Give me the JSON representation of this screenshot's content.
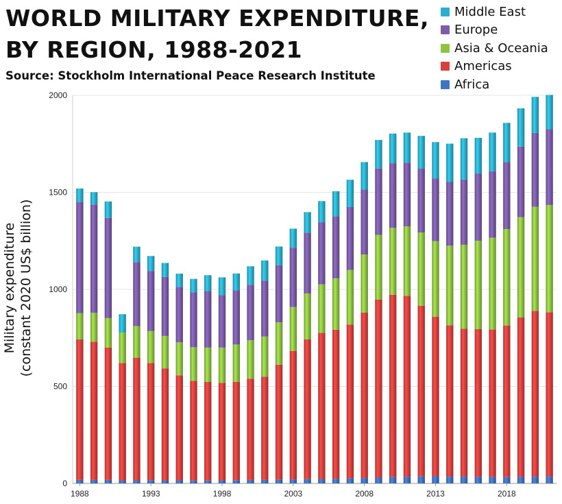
{
  "chart_data": {
    "type": "bar",
    "stacked": true,
    "title_lines": [
      "WORLD MILITARY EXPENDITURE,",
      "BY REGION, 1988-2021"
    ],
    "subtitle": "Source: Stockholm International Peace Research Institute",
    "ylabel_lines": [
      "Military expenditure",
      "(constant 2020 US$ billion)"
    ],
    "xlabel": "",
    "ylim": [
      0,
      2000
    ],
    "yticks": [
      0,
      500,
      1000,
      1500,
      2000
    ],
    "xtick_labels": [
      "1988",
      "1993",
      "1998",
      "2003",
      "2008",
      "2013",
      "2018"
    ],
    "grid": true,
    "legend_position": "top-right",
    "categories": [
      "1988",
      "1989",
      "1990",
      "1991",
      "1992",
      "1993",
      "1994",
      "1995",
      "1996",
      "1997",
      "1998",
      "1999",
      "2000",
      "2001",
      "2002",
      "2003",
      "2004",
      "2005",
      "2006",
      "2007",
      "2008",
      "2009",
      "2010",
      "2011",
      "2012",
      "2013",
      "2014",
      "2015",
      "2016",
      "2017",
      "2018",
      "2019",
      "2020",
      "2021"
    ],
    "series": [
      {
        "name": "Africa",
        "color": "#3f73c4",
        "values": [
          18,
          18,
          18,
          16,
          16,
          17,
          16,
          16,
          15,
          15,
          16,
          17,
          18,
          18,
          20,
          20,
          22,
          23,
          24,
          26,
          28,
          30,
          33,
          35,
          36,
          37,
          35,
          35,
          34,
          34,
          33,
          34,
          35,
          35
        ]
      },
      {
        "name": "Americas",
        "color": "#d9403d",
        "values": [
          724,
          712,
          682,
          604,
          632,
          603,
          577,
          541,
          514,
          508,
          502,
          507,
          522,
          532,
          592,
          663,
          720,
          753,
          768,
          793,
          852,
          917,
          939,
          932,
          880,
          822,
          780,
          762,
          761,
          759,
          781,
          821,
          854,
          847
        ]
      },
      {
        "name": "Asia & Oceania",
        "color": "#8fc441",
        "values": [
          136,
          149,
          152,
          157,
          163,
          165,
          167,
          170,
          173,
          177,
          182,
          192,
          198,
          207,
          218,
          226,
          237,
          250,
          265,
          281,
          300,
          334,
          345,
          358,
          377,
          390,
          410,
          433,
          456,
          473,
          497,
          517,
          537,
          553
        ]
      },
      {
        "name": "Europe",
        "color": "#7b5ca8",
        "values": [
          573,
          558,
          516,
          0,
          329,
          310,
          304,
          286,
          282,
          291,
          271,
          279,
          286,
          287,
          294,
          306,
          313,
          320,
          320,
          324,
          334,
          342,
          333,
          328,
          329,
          323,
          328,
          336,
          346,
          343,
          345,
          364,
          380,
          390
        ]
      },
      {
        "name": "Middle East",
        "color": "#2ab0cf",
        "values": [
          69,
          64,
          85,
          95,
          80,
          77,
          72,
          68,
          70,
          82,
          91,
          87,
          95,
          105,
          97,
          98,
          106,
          109,
          129,
          141,
          142,
          147,
          153,
          155,
          169,
          187,
          198,
          213,
          184,
          199,
          202,
          197,
          186,
          177
        ]
      }
    ]
  }
}
